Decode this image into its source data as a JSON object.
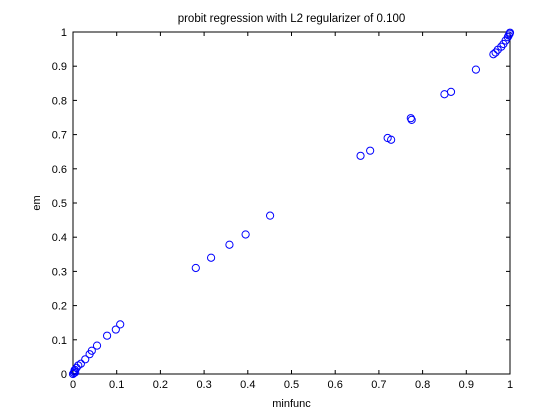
{
  "chart_data": {
    "type": "scatter",
    "title": "probit regression with L2 regularizer of 0.100",
    "xlabel": "minfunc",
    "ylabel": "em",
    "xlim": [
      0,
      1
    ],
    "ylim": [
      0,
      1
    ],
    "xticks": [
      "0",
      "0.1",
      "0.2",
      "0.3",
      "0.4",
      "0.5",
      "0.6",
      "0.7",
      "0.8",
      "0.9",
      "1"
    ],
    "yticks": [
      "0",
      "0.1",
      "0.2",
      "0.3",
      "0.4",
      "0.5",
      "0.6",
      "0.7",
      "0.8",
      "0.9",
      "1"
    ],
    "marker": "open-circle",
    "marker_color": "#0000ff",
    "grid": false,
    "legend": "none",
    "points": [
      [
        0.0,
        0.0
      ],
      [
        0.002,
        0.003
      ],
      [
        0.003,
        0.008
      ],
      [
        0.004,
        0.012
      ],
      [
        0.005,
        0.005
      ],
      [
        0.008,
        0.018
      ],
      [
        0.012,
        0.025
      ],
      [
        0.018,
        0.03
      ],
      [
        0.028,
        0.043
      ],
      [
        0.038,
        0.058
      ],
      [
        0.043,
        0.068
      ],
      [
        0.055,
        0.083
      ],
      [
        0.078,
        0.112
      ],
      [
        0.098,
        0.13
      ],
      [
        0.108,
        0.145
      ],
      [
        0.281,
        0.31
      ],
      [
        0.316,
        0.34
      ],
      [
        0.358,
        0.378
      ],
      [
        0.395,
        0.408
      ],
      [
        0.451,
        0.463
      ],
      [
        0.658,
        0.638
      ],
      [
        0.68,
        0.653
      ],
      [
        0.72,
        0.69
      ],
      [
        0.728,
        0.685
      ],
      [
        0.773,
        0.748
      ],
      [
        0.775,
        0.743
      ],
      [
        0.85,
        0.818
      ],
      [
        0.865,
        0.825
      ],
      [
        0.922,
        0.89
      ],
      [
        0.962,
        0.935
      ],
      [
        0.967,
        0.94
      ],
      [
        0.972,
        0.948
      ],
      [
        0.98,
        0.957
      ],
      [
        0.985,
        0.965
      ],
      [
        0.99,
        0.975
      ],
      [
        0.995,
        0.985
      ],
      [
        0.997,
        0.99
      ],
      [
        0.999,
        0.995
      ],
      [
        1.0,
        0.998
      ]
    ]
  }
}
